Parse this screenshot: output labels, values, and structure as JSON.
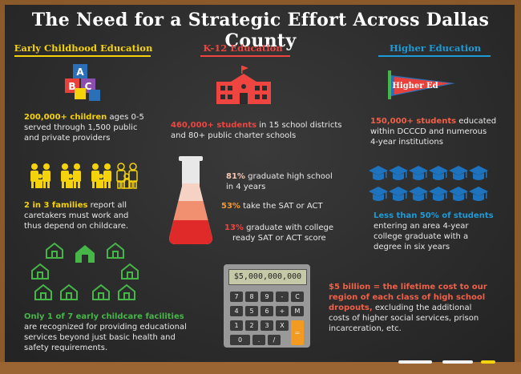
{
  "title": "The Need for a Strategic Effort Across Dallas County",
  "columns": {
    "early": {
      "heading": "Early Childhood Education",
      "color": "#f4d20c"
    },
    "k12": {
      "heading": "K-12 Education",
      "color": "#ee4540"
    },
    "higher": {
      "heading": "Higher Education",
      "color": "#1e9bd7"
    }
  },
  "early": {
    "stat1_hl": "200,000+ children",
    "stat1_line1": " ages 0-5",
    "stat1_line2": "served through 1,500 public",
    "stat1_line3": "and private providers",
    "stat2_hl": "2 in 3 families",
    "stat2_line1": " report all",
    "stat2_line2": "caretakers must work and",
    "stat2_line3": "thus depend on childcare.",
    "stat3_hl": "Only 1 of 7 early childcare facilities",
    "stat3_line1": "are recognized for providing educational",
    "stat3_line2": "services beyond just basic health and",
    "stat3_line3": "safety requirements."
  },
  "k12": {
    "stat1_hl": "460,000+ students",
    "stat1_line1": " in 15 school districts",
    "stat1_line2": "and 80+ public charter schools",
    "flask_stat1_hl": "81%",
    "flask_stat1_line1": " graduate high school",
    "flask_stat1_line2": "in 4 years",
    "flask_stat2_hl": "53%",
    "flask_stat2_line1": " take the SAT or ACT",
    "flask_stat3_hl": "13%",
    "flask_stat3_line1": " graduate with college",
    "flask_stat3_line2": "ready SAT or ACT score",
    "calc_display": "$5,000,000,000",
    "calc_keys": [
      "7",
      "8",
      "9",
      "-",
      "C",
      "4",
      "5",
      "6",
      "+",
      "M",
      "1",
      "2",
      "3",
      "X",
      "0",
      ".",
      "/",
      "="
    ],
    "cost_hl_line1": "$5 billion = the lifetime cost to our",
    "cost_hl_line2": "region of each class of high school",
    "cost_hl_line3": "dropouts,",
    "cost_line3": " excluding the additional",
    "cost_line4": "costs of higher social services, prison",
    "cost_line5": "incarceration, etc."
  },
  "higher": {
    "pennant_label": "Higher Ed",
    "stat1_hl": "150,000+ students",
    "stat1_line1": " educated",
    "stat1_line2": "within DCCCD and numerous",
    "stat1_line3": "4-year institutions",
    "stat2_hl": "Less than 50% of students",
    "stat2_line1": "entering an area 4-year",
    "stat2_line2": "college graduate with a",
    "stat2_line3": "degree in six years"
  },
  "icons": {
    "blocks": "abc-blocks-icon",
    "family": "family-icon",
    "houses": "childcare-houses-icon",
    "school": "school-building-icon",
    "flask": "flask-icon",
    "calculator": "calculator-icon",
    "pennant": "pennant-icon",
    "caps": "graduation-caps-icon"
  }
}
